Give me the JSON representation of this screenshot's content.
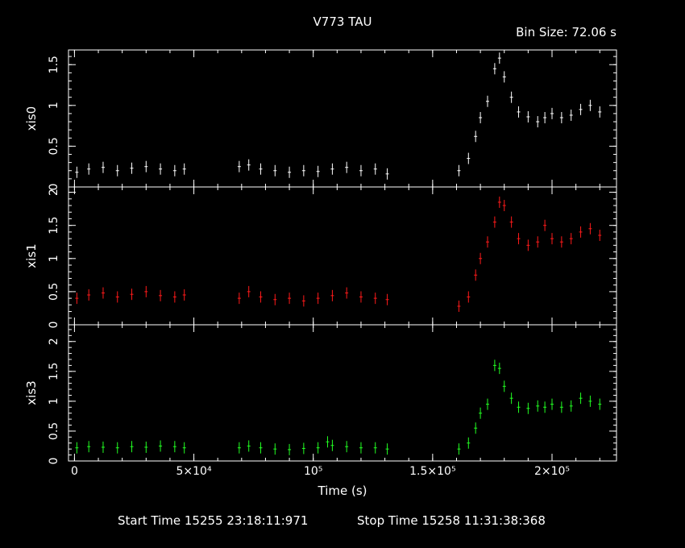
{
  "chart_data": {
    "type": "scatter",
    "title": "V773 TAU",
    "bin_size_label": "Bin Size: 72.06 s",
    "xlabel": "Time (s)",
    "x_tick_labels": [
      "0",
      "5×10⁴",
      "10⁵",
      "1.5×10⁵",
      "2×10⁵"
    ],
    "x_ticks": [
      0,
      50000,
      100000,
      150000,
      200000
    ],
    "xlim": [
      -2500,
      227000
    ],
    "footer": {
      "start_label": "Start Time 15255 23:18:11:971",
      "stop_label": "Stop Time 15258 11:31:38:368"
    },
    "panels": [
      {
        "name": "xis0",
        "ylabel": "xis0",
        "color": "#ffffff",
        "ylim": [
          0,
          1.68
        ],
        "y_ticks": [
          0,
          0.5,
          1,
          1.5
        ],
        "y_tick_labels": [
          "0",
          "0.5",
          "1",
          "1.5"
        ],
        "points": [
          [
            1000,
            0.18
          ],
          [
            6000,
            0.22
          ],
          [
            12000,
            0.24
          ],
          [
            18000,
            0.2
          ],
          [
            24000,
            0.23
          ],
          [
            30000,
            0.25
          ],
          [
            36000,
            0.22
          ],
          [
            42000,
            0.2
          ],
          [
            46000,
            0.22
          ],
          [
            69000,
            0.25
          ],
          [
            73000,
            0.27
          ],
          [
            78000,
            0.22
          ],
          [
            84000,
            0.2
          ],
          [
            90000,
            0.18
          ],
          [
            96000,
            0.2
          ],
          [
            102000,
            0.19
          ],
          [
            108000,
            0.22
          ],
          [
            114000,
            0.24
          ],
          [
            120000,
            0.2
          ],
          [
            126000,
            0.22
          ],
          [
            131000,
            0.16
          ],
          [
            161000,
            0.2
          ],
          [
            165000,
            0.35
          ],
          [
            168000,
            0.62
          ],
          [
            170000,
            0.85
          ],
          [
            173000,
            1.05
          ],
          [
            176000,
            1.45
          ],
          [
            178000,
            1.58
          ],
          [
            180000,
            1.35
          ],
          [
            183000,
            1.1
          ],
          [
            186000,
            0.92
          ],
          [
            190000,
            0.86
          ],
          [
            194000,
            0.8
          ],
          [
            197000,
            0.85
          ],
          [
            200000,
            0.9
          ],
          [
            204000,
            0.85
          ],
          [
            208000,
            0.88
          ],
          [
            212000,
            0.95
          ],
          [
            216000,
            1.0
          ],
          [
            220000,
            0.92
          ]
        ]
      },
      {
        "name": "xis1",
        "ylabel": "xis1",
        "color": "#ff1a1a",
        "ylim": [
          0,
          2.08
        ],
        "y_ticks": [
          0,
          0.5,
          1,
          1.5,
          2
        ],
        "y_tick_labels": [
          "0",
          "0.5",
          "1",
          "1.5",
          "2"
        ],
        "points": [
          [
            1000,
            0.4
          ],
          [
            6000,
            0.45
          ],
          [
            12000,
            0.48
          ],
          [
            18000,
            0.42
          ],
          [
            24000,
            0.46
          ],
          [
            30000,
            0.5
          ],
          [
            36000,
            0.44
          ],
          [
            42000,
            0.42
          ],
          [
            46000,
            0.45
          ],
          [
            69000,
            0.4
          ],
          [
            73000,
            0.5
          ],
          [
            78000,
            0.42
          ],
          [
            84000,
            0.38
          ],
          [
            90000,
            0.4
          ],
          [
            96000,
            0.36
          ],
          [
            102000,
            0.4
          ],
          [
            108000,
            0.44
          ],
          [
            114000,
            0.48
          ],
          [
            120000,
            0.42
          ],
          [
            126000,
            0.4
          ],
          [
            131000,
            0.38
          ],
          [
            161000,
            0.28
          ],
          [
            165000,
            0.42
          ],
          [
            168000,
            0.75
          ],
          [
            170000,
            1.0
          ],
          [
            173000,
            1.25
          ],
          [
            176000,
            1.55
          ],
          [
            178000,
            1.85
          ],
          [
            180000,
            1.8
          ],
          [
            183000,
            1.55
          ],
          [
            186000,
            1.3
          ],
          [
            190000,
            1.2
          ],
          [
            194000,
            1.25
          ],
          [
            197000,
            1.5
          ],
          [
            200000,
            1.3
          ],
          [
            204000,
            1.25
          ],
          [
            208000,
            1.3
          ],
          [
            212000,
            1.4
          ],
          [
            216000,
            1.45
          ],
          [
            220000,
            1.35
          ]
        ]
      },
      {
        "name": "xis3",
        "ylabel": "xis3",
        "color": "#22ff22",
        "ylim": [
          0,
          2.28
        ],
        "y_ticks": [
          0,
          0.5,
          1,
          1.5,
          2
        ],
        "y_tick_labels": [
          "0",
          "0.5",
          "1",
          "1.5",
          "2"
        ],
        "points": [
          [
            1000,
            0.22
          ],
          [
            6000,
            0.24
          ],
          [
            12000,
            0.23
          ],
          [
            18000,
            0.22
          ],
          [
            24000,
            0.24
          ],
          [
            30000,
            0.23
          ],
          [
            36000,
            0.25
          ],
          [
            42000,
            0.24
          ],
          [
            46000,
            0.22
          ],
          [
            69000,
            0.22
          ],
          [
            73000,
            0.25
          ],
          [
            78000,
            0.22
          ],
          [
            84000,
            0.2
          ],
          [
            90000,
            0.19
          ],
          [
            96000,
            0.21
          ],
          [
            102000,
            0.22
          ],
          [
            106000,
            0.32
          ],
          [
            108000,
            0.26
          ],
          [
            114000,
            0.24
          ],
          [
            120000,
            0.22
          ],
          [
            126000,
            0.22
          ],
          [
            131000,
            0.2
          ],
          [
            161000,
            0.2
          ],
          [
            165000,
            0.3
          ],
          [
            168000,
            0.55
          ],
          [
            170000,
            0.8
          ],
          [
            173000,
            0.95
          ],
          [
            176000,
            1.6
          ],
          [
            178000,
            1.55
          ],
          [
            180000,
            1.25
          ],
          [
            183000,
            1.05
          ],
          [
            186000,
            0.9
          ],
          [
            190000,
            0.88
          ],
          [
            194000,
            0.92
          ],
          [
            197000,
            0.9
          ],
          [
            200000,
            0.95
          ],
          [
            204000,
            0.9
          ],
          [
            208000,
            0.92
          ],
          [
            212000,
            1.05
          ],
          [
            216000,
            1.0
          ],
          [
            220000,
            0.95
          ]
        ]
      }
    ]
  }
}
